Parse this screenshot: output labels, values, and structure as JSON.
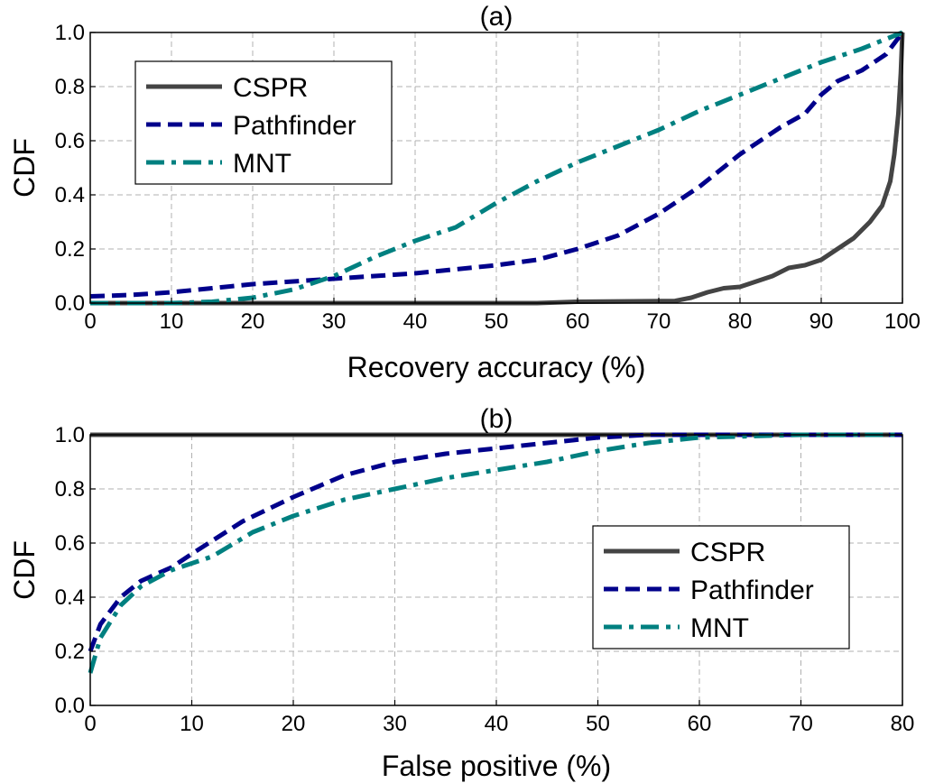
{
  "chart_data": [
    {
      "type": "line",
      "title": "(a)",
      "xlabel": "Recovery accuracy (%)",
      "ylabel": "CDF",
      "xlim": [
        0,
        100
      ],
      "ylim": [
        0,
        1
      ],
      "xticks": [
        "0",
        "10",
        "20",
        "30",
        "40",
        "50",
        "60",
        "70",
        "80",
        "90",
        "100"
      ],
      "yticks": [
        "0.0",
        "0.2",
        "0.4",
        "0.6",
        "0.8",
        "1.0"
      ],
      "grid": true,
      "legend_position": "top-left",
      "series": [
        {
          "name": "CSPR",
          "style": "solid",
          "color": "#444444",
          "points": [
            [
              0,
              0
            ],
            [
              55,
              0
            ],
            [
              60,
              0.005
            ],
            [
              72,
              0.008
            ],
            [
              74,
              0.02
            ],
            [
              76,
              0.04
            ],
            [
              78,
              0.055
            ],
            [
              80,
              0.06
            ],
            [
              82,
              0.08
            ],
            [
              84,
              0.1
            ],
            [
              86,
              0.13
            ],
            [
              88,
              0.14
            ],
            [
              90,
              0.16
            ],
            [
              92,
              0.2
            ],
            [
              94,
              0.24
            ],
            [
              96,
              0.3
            ],
            [
              97.5,
              0.36
            ],
            [
              98.5,
              0.45
            ],
            [
              99,
              0.55
            ],
            [
              99.5,
              0.7
            ],
            [
              99.8,
              0.85
            ],
            [
              100,
              1.0
            ]
          ]
        },
        {
          "name": "Pathfinder",
          "style": "dashed",
          "color": "#00008b",
          "points": [
            [
              0,
              0.025
            ],
            [
              5,
              0.03
            ],
            [
              10,
              0.04
            ],
            [
              15,
              0.055
            ],
            [
              20,
              0.07
            ],
            [
              25,
              0.08
            ],
            [
              30,
              0.09
            ],
            [
              35,
              0.1
            ],
            [
              40,
              0.11
            ],
            [
              45,
              0.125
            ],
            [
              50,
              0.14
            ],
            [
              55,
              0.16
            ],
            [
              60,
              0.2
            ],
            [
              65,
              0.25
            ],
            [
              70,
              0.33
            ],
            [
              75,
              0.43
            ],
            [
              80,
              0.55
            ],
            [
              85,
              0.65
            ],
            [
              88,
              0.7
            ],
            [
              90,
              0.77
            ],
            [
              92,
              0.82
            ],
            [
              95,
              0.86
            ],
            [
              98,
              0.92
            ],
            [
              100,
              1.0
            ]
          ]
        },
        {
          "name": "MNT",
          "style": "dashdot",
          "color": "#008080",
          "points": [
            [
              0,
              0
            ],
            [
              10,
              0
            ],
            [
              15,
              0.005
            ],
            [
              20,
              0.02
            ],
            [
              25,
              0.05
            ],
            [
              30,
              0.1
            ],
            [
              35,
              0.17
            ],
            [
              40,
              0.23
            ],
            [
              45,
              0.28
            ],
            [
              50,
              0.37
            ],
            [
              55,
              0.45
            ],
            [
              60,
              0.52
            ],
            [
              65,
              0.58
            ],
            [
              70,
              0.64
            ],
            [
              75,
              0.71
            ],
            [
              80,
              0.77
            ],
            [
              85,
              0.83
            ],
            [
              90,
              0.89
            ],
            [
              95,
              0.94
            ],
            [
              100,
              1.0
            ]
          ]
        }
      ]
    },
    {
      "type": "line",
      "title": "(b)",
      "xlabel": "False positive (%)",
      "ylabel": "CDF",
      "xlim": [
        0,
        80
      ],
      "ylim": [
        0,
        1
      ],
      "xticks": [
        "0",
        "10",
        "20",
        "30",
        "40",
        "50",
        "60",
        "70",
        "80"
      ],
      "yticks": [
        "0.0",
        "0.2",
        "0.4",
        "0.6",
        "0.8",
        "1.0"
      ],
      "grid": true,
      "legend_position": "center-right",
      "series": [
        {
          "name": "CSPR",
          "style": "solid",
          "color": "#444444",
          "points": [
            [
              0,
              1.0
            ],
            [
              80,
              1.0
            ]
          ]
        },
        {
          "name": "Pathfinder",
          "style": "dashed",
          "color": "#00008b",
          "points": [
            [
              0,
              0.2
            ],
            [
              1,
              0.3
            ],
            [
              3,
              0.4
            ],
            [
              5,
              0.46
            ],
            [
              8,
              0.51
            ],
            [
              10,
              0.56
            ],
            [
              15,
              0.68
            ],
            [
              20,
              0.77
            ],
            [
              25,
              0.85
            ],
            [
              30,
              0.9
            ],
            [
              35,
              0.93
            ],
            [
              40,
              0.95
            ],
            [
              45,
              0.97
            ],
            [
              50,
              0.99
            ],
            [
              55,
              1.0
            ],
            [
              80,
              1.0
            ]
          ]
        },
        {
          "name": "MNT",
          "style": "dashdot",
          "color": "#008080",
          "points": [
            [
              0,
              0.12
            ],
            [
              1,
              0.25
            ],
            [
              3,
              0.37
            ],
            [
              5,
              0.44
            ],
            [
              8,
              0.5
            ],
            [
              12,
              0.55
            ],
            [
              16,
              0.64
            ],
            [
              20,
              0.7
            ],
            [
              25,
              0.76
            ],
            [
              30,
              0.8
            ],
            [
              35,
              0.84
            ],
            [
              40,
              0.87
            ],
            [
              45,
              0.9
            ],
            [
              50,
              0.94
            ],
            [
              55,
              0.97
            ],
            [
              60,
              0.99
            ],
            [
              70,
              1.0
            ],
            [
              80,
              1.0
            ]
          ]
        }
      ]
    }
  ]
}
